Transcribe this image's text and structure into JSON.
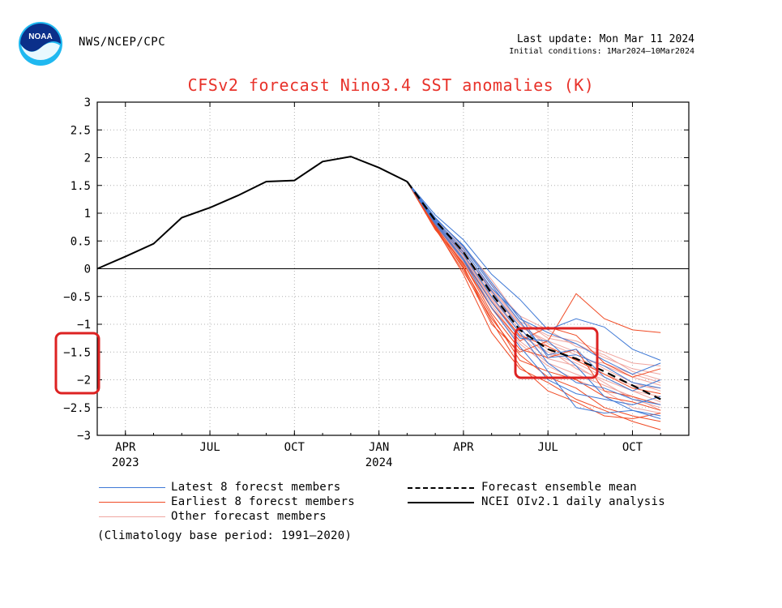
{
  "header": {
    "agency": "NWS/NCEP/CPC",
    "last_update": "Last update: Mon Mar 11 2024",
    "initial_conditions": "Initial conditions: 1Mar2024–10Mar2024",
    "logo_text": "NOAA"
  },
  "chart_data": {
    "type": "line",
    "title": "CFSv2 forecast Nino3.4 SST anomalies (K)",
    "xlabel": "",
    "ylabel": "",
    "ylim": [
      -3,
      3
    ],
    "yticks": [
      3,
      2.5,
      2,
      1.5,
      1,
      0.5,
      0,
      -0.5,
      -1,
      -1.5,
      -2,
      -2.5,
      -3
    ],
    "ytick_labels": [
      "3",
      "2.5",
      "2",
      "1.5",
      "1",
      "0.5",
      "0",
      "−0.5",
      "−1",
      "−1.5",
      "−2",
      "−2.5",
      "−3"
    ],
    "x_unit": "months since 2023-03-01",
    "xlim": [
      0,
      21
    ],
    "xticks": [
      {
        "x": 1,
        "label": "APR",
        "year": "2023"
      },
      {
        "x": 4,
        "label": "JUL",
        "year": ""
      },
      {
        "x": 7,
        "label": "OCT",
        "year": ""
      },
      {
        "x": 10,
        "label": "JAN",
        "year": "2024"
      },
      {
        "x": 13,
        "label": "APR",
        "year": ""
      },
      {
        "x": 16,
        "label": "JUL",
        "year": ""
      },
      {
        "x": 19,
        "label": "OCT",
        "year": ""
      }
    ],
    "grid": true,
    "analysis": {
      "name": "NCEI OIv2.1 daily analysis",
      "color": "#000000",
      "x": [
        0,
        1,
        2,
        3,
        4,
        5,
        6,
        7,
        8,
        9,
        10,
        11
      ],
      "y": [
        0.0,
        0.22,
        0.45,
        0.92,
        1.1,
        1.32,
        1.57,
        1.59,
        1.93,
        2.02,
        1.82,
        1.57
      ]
    },
    "ensemble_mean": {
      "name": "Forecast ensemble mean",
      "color": "#000000",
      "x": [
        11,
        12,
        13,
        14,
        15,
        16,
        17,
        18,
        19,
        20
      ],
      "y": [
        1.57,
        0.87,
        0.3,
        -0.45,
        -1.1,
        -1.45,
        -1.62,
        -1.85,
        -2.1,
        -2.35
      ]
    },
    "latest_members": {
      "name": "Latest 8 forecast members",
      "color": "#3f79d6",
      "x": [
        11,
        12,
        13,
        14,
        15,
        16,
        17,
        18,
        19,
        20
      ],
      "members": [
        [
          1.57,
          0.97,
          0.52,
          -0.1,
          -0.55,
          -1.1,
          -0.9,
          -1.05,
          -1.45,
          -1.65
        ],
        [
          1.57,
          0.92,
          0.4,
          -0.3,
          -0.95,
          -1.55,
          -1.45,
          -1.95,
          -2.2,
          -2.0
        ],
        [
          1.57,
          0.83,
          0.18,
          -0.6,
          -1.25,
          -1.3,
          -1.75,
          -2.3,
          -2.55,
          -2.7
        ],
        [
          1.57,
          0.86,
          0.3,
          -0.4,
          -1.05,
          -1.7,
          -2.05,
          -2.15,
          -2.35,
          -2.45
        ],
        [
          1.57,
          0.9,
          0.42,
          -0.25,
          -0.9,
          -1.15,
          -1.35,
          -1.65,
          -1.9,
          -1.7
        ],
        [
          1.57,
          0.8,
          0.15,
          -0.7,
          -1.4,
          -2.0,
          -2.25,
          -2.35,
          -2.45,
          -2.3
        ],
        [
          1.57,
          0.88,
          0.35,
          -0.35,
          -0.85,
          -1.6,
          -1.55,
          -1.75,
          -2.05,
          -2.15
        ],
        [
          1.57,
          0.84,
          0.25,
          -0.5,
          -1.15,
          -1.85,
          -2.5,
          -2.6,
          -2.55,
          -2.65
        ]
      ]
    },
    "earliest_members": {
      "name": "Earliest 8 forecast members",
      "color": "#f04a24",
      "x": [
        11,
        12,
        13,
        14,
        15,
        16,
        17,
        18,
        19,
        20
      ],
      "members": [
        [
          1.57,
          0.75,
          0.0,
          -1.0,
          -1.5,
          -1.3,
          -0.45,
          -0.9,
          -1.1,
          -1.15
        ],
        [
          1.57,
          0.72,
          -0.05,
          -0.9,
          -1.55,
          -1.95,
          -2.15,
          -2.5,
          -2.65,
          -2.75
        ],
        [
          1.57,
          0.7,
          0.1,
          -0.8,
          -1.45,
          -1.6,
          -1.45,
          -2.2,
          -2.3,
          -2.45
        ],
        [
          1.57,
          0.78,
          0.05,
          -0.95,
          -1.75,
          -2.2,
          -2.4,
          -2.65,
          -2.7,
          -2.6
        ],
        [
          1.57,
          0.76,
          0.08,
          -0.7,
          -1.3,
          -1.05,
          -1.2,
          -1.7,
          -1.95,
          -1.8
        ],
        [
          1.57,
          0.74,
          -0.1,
          -1.15,
          -1.8,
          -2.05,
          -2.35,
          -2.55,
          -2.75,
          -2.9
        ],
        [
          1.57,
          0.8,
          0.15,
          -0.6,
          -1.2,
          -1.4,
          -1.65,
          -1.9,
          -2.15,
          -2.25
        ],
        [
          1.57,
          0.73,
          0.02,
          -0.85,
          -1.65,
          -1.85,
          -2.0,
          -2.3,
          -2.4,
          -2.55
        ]
      ]
    },
    "other_members": {
      "name": "Other forecast members",
      "color": "#f0a6a0",
      "x": [
        11,
        12,
        13,
        14,
        15,
        16,
        17,
        18,
        19,
        20
      ],
      "members": [
        [
          1.57,
          0.9,
          0.4,
          -0.2,
          -0.9,
          -1.25,
          -1.35,
          -1.6,
          -1.8,
          -1.9
        ],
        [
          1.57,
          0.82,
          0.2,
          -0.55,
          -1.2,
          -1.5,
          -1.7,
          -1.95,
          -2.2,
          -2.4
        ],
        [
          1.57,
          0.86,
          0.32,
          -0.42,
          -1.0,
          -1.35,
          -1.55,
          -1.75,
          -1.95,
          -2.1
        ],
        [
          1.57,
          0.79,
          0.12,
          -0.65,
          -1.3,
          -1.7,
          -1.9,
          -2.1,
          -2.3,
          -2.55
        ],
        [
          1.57,
          0.88,
          0.28,
          -0.35,
          -0.95,
          -1.2,
          -1.3,
          -1.5,
          -1.7,
          -1.75
        ],
        [
          1.57,
          0.84,
          0.22,
          -0.5,
          -1.1,
          -1.45,
          -1.8,
          -2.0,
          -2.2,
          -2.3
        ],
        [
          1.57,
          0.81,
          0.18,
          -0.58,
          -1.22,
          -1.62,
          -1.75,
          -2.05,
          -2.35,
          -2.5
        ],
        [
          1.57,
          0.92,
          0.38,
          -0.28,
          -0.85,
          -1.1,
          -1.4,
          -1.55,
          -1.85,
          -2.0
        ],
        [
          1.57,
          0.77,
          0.1,
          -0.72,
          -1.35,
          -1.75,
          -2.0,
          -2.2,
          -2.5,
          -2.6
        ],
        [
          1.57,
          0.87,
          0.26,
          -0.45,
          -1.05,
          -1.3,
          -1.5,
          -1.8,
          -2.05,
          -2.2
        ],
        [
          1.57,
          0.83,
          0.2,
          -0.52,
          -1.15,
          -1.55,
          -1.6,
          -1.9,
          -2.1,
          -2.15
        ],
        [
          1.57,
          0.85,
          0.3,
          -0.38,
          -0.98,
          -1.4,
          -1.65,
          -1.7,
          -1.9,
          -2.05
        ]
      ]
    },
    "annotations": [
      {
        "type": "highlight-box",
        "target": "y-axis labels -1.5 to -2",
        "color": "#dd2222"
      },
      {
        "type": "highlight-box",
        "target": "forecast plume JUL to AUG around -1.5",
        "color": "#dd2222"
      }
    ]
  },
  "legend": {
    "latest_label": "Latest 8 forecst members",
    "earliest_label": "Earliest 8 forecst members",
    "other_label": "Other forecast members",
    "mean_label": "Forecast ensemble mean",
    "analysis_label": "NCEI OIv2.1 daily analysis",
    "latest_color": "#3f79d6",
    "earliest_color": "#f04a24",
    "other_color": "#f0a6a0"
  },
  "footnote": "(Climatology base period: 1991–2020)"
}
